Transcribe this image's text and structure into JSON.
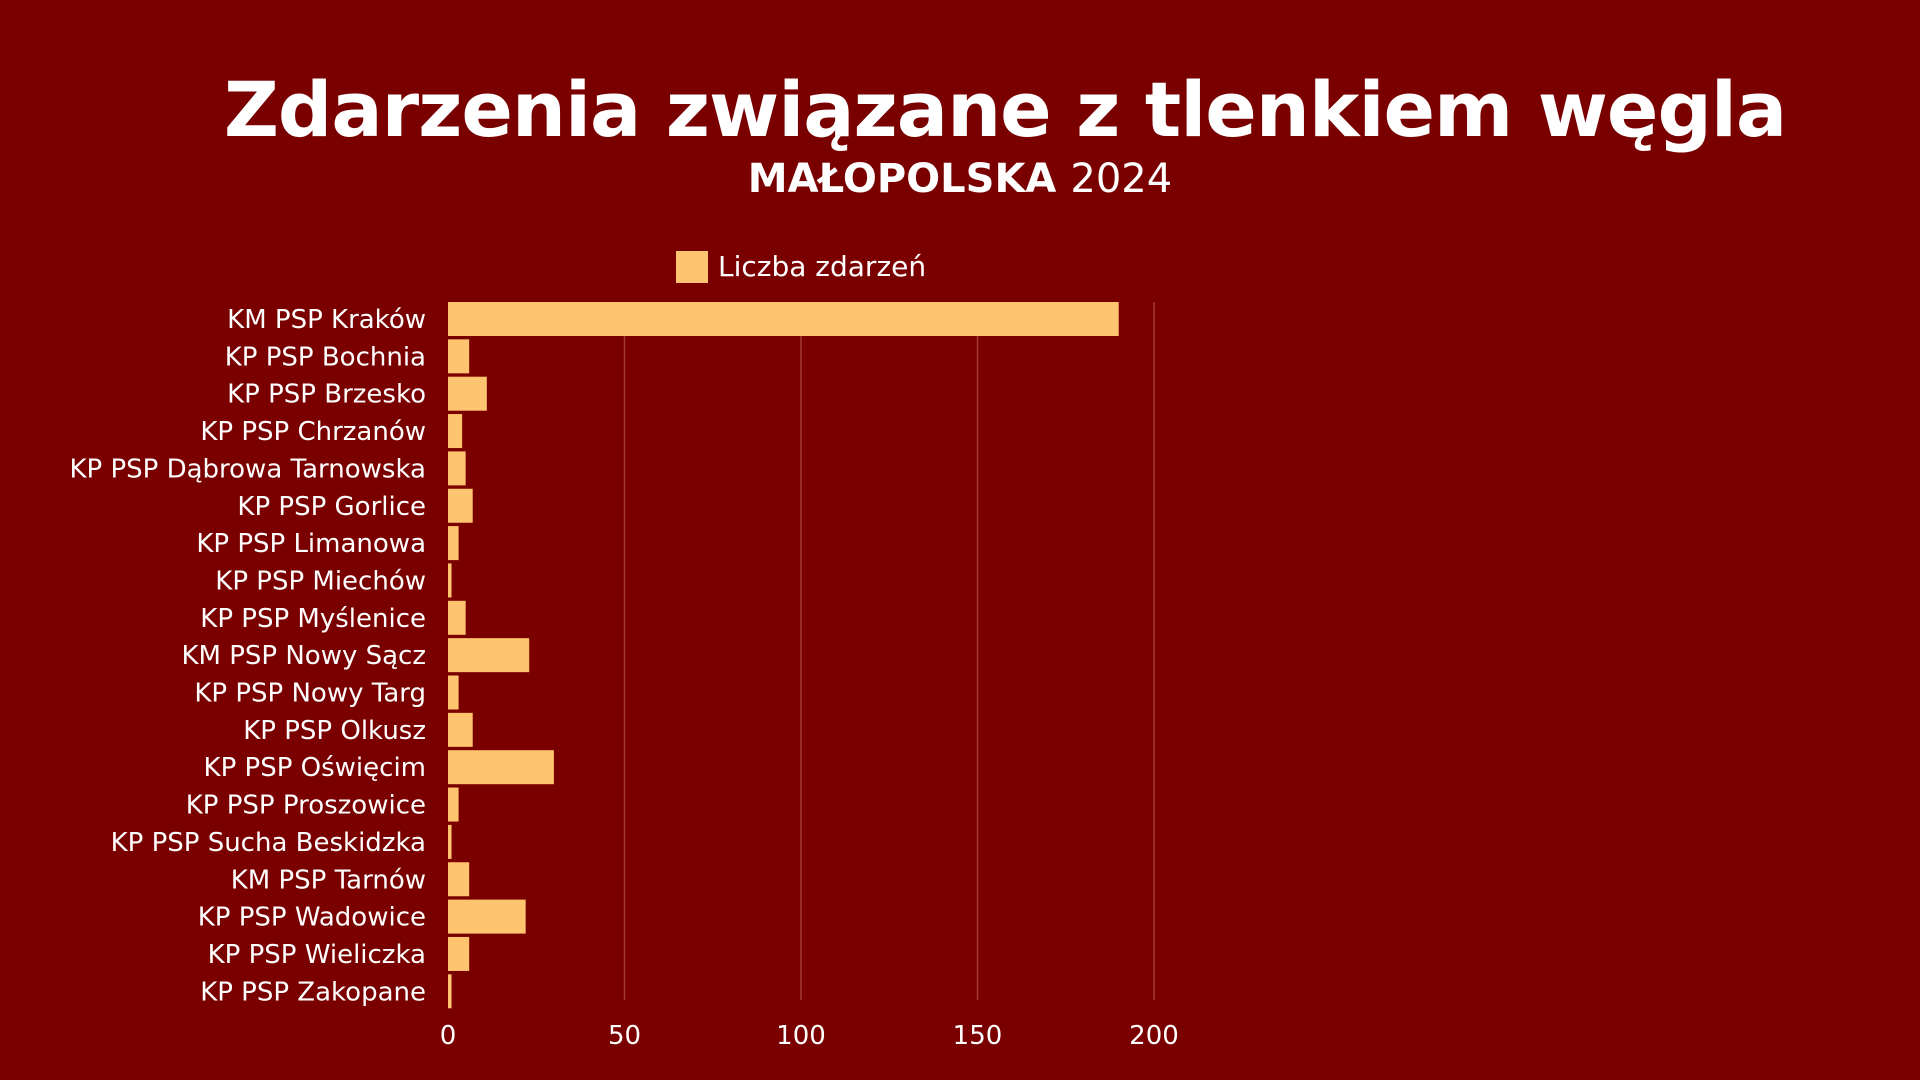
{
  "header": {
    "title": "Zdarzenia związane z tlenkiem węgla",
    "region": "MAŁOPOLSKA",
    "year": "2024"
  },
  "colors": {
    "background": "#7a0000",
    "bar": "#ffc470",
    "grid": "#a23a3a",
    "text": "#ffffff"
  },
  "chart_data": {
    "type": "bar",
    "orientation": "horizontal",
    "categories": [
      "KM PSP Kraków",
      "KP PSP Bochnia",
      "KP PSP Brzesko",
      "KP PSP Chrzanów",
      "KP PSP Dąbrowa Tarnowska",
      "KP PSP Gorlice",
      "KP PSP Limanowa",
      "KP PSP Miechów",
      "KP PSP Myślenice",
      "KM PSP Nowy Sącz",
      "KP PSP Nowy Targ",
      "KP PSP Olkusz",
      "KP PSP Oświęcim",
      "KP PSP Proszowice",
      "KP PSP Sucha Beskidzka",
      "KM PSP Tarnów",
      "KP PSP Wadowice",
      "KP PSP Wieliczka",
      "KP PSP Zakopane"
    ],
    "series": [
      {
        "name": "Liczba zdarzeń",
        "values": [
          190,
          6,
          11,
          4,
          5,
          7,
          3,
          1,
          5,
          23,
          3,
          7,
          30,
          3,
          1,
          6,
          22,
          6,
          1
        ]
      }
    ],
    "xlim": [
      0,
      200
    ],
    "xticks": [
      "0",
      "50",
      "100",
      "150",
      "200"
    ],
    "grid": true,
    "legend_position": "top-center"
  }
}
